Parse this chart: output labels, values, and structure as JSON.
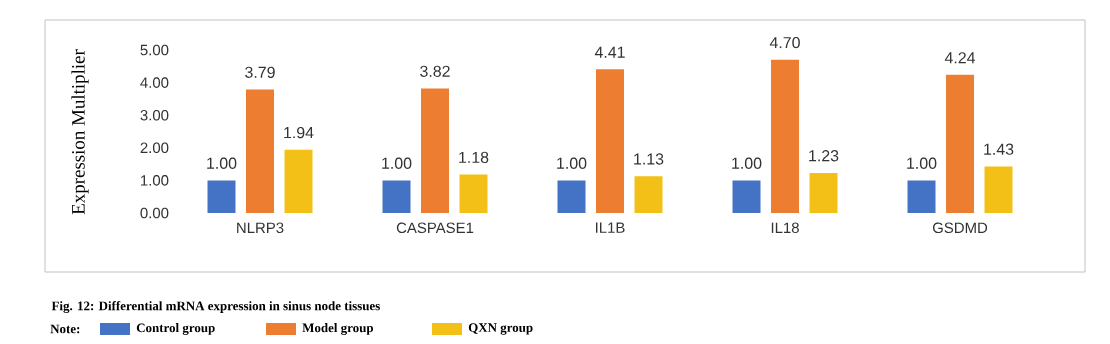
{
  "chart_data": {
    "type": "bar",
    "ylabel": "Expression Multiplier",
    "categories": [
      "NLRP3",
      "CASPASE1",
      "IL1B",
      "IL18",
      "GSDMD"
    ],
    "series": [
      {
        "name": "Control group",
        "color": "#4472c4",
        "values": [
          1.0,
          1.0,
          1.0,
          1.0,
          1.0
        ],
        "value_labels": [
          "1.00",
          "1.00",
          "1.00",
          "1.00",
          "1.00"
        ]
      },
      {
        "name": "Model group",
        "color": "#ed7d31",
        "values": [
          3.79,
          3.82,
          4.41,
          4.7,
          4.24
        ],
        "value_labels": [
          "3.79",
          "3.82",
          "4.41",
          "4.70",
          "4.24"
        ]
      },
      {
        "name": "QXN group",
        "color": "#f2c016",
        "values": [
          1.94,
          1.18,
          1.13,
          1.23,
          1.43
        ],
        "value_labels": [
          "1.94",
          "1.18",
          "1.13",
          "1.23",
          "1.43"
        ]
      }
    ],
    "ylim": [
      0,
      5
    ],
    "yticks": [
      {
        "value": 0,
        "label": "0.00"
      },
      {
        "value": 1,
        "label": "1.00"
      },
      {
        "value": 2,
        "label": "2.00"
      },
      {
        "value": 3,
        "label": "3.00"
      },
      {
        "value": 4,
        "label": "4.00"
      },
      {
        "value": 5,
        "label": "5.00"
      }
    ],
    "grid": false,
    "legend": "bottom",
    "annotations": [
      "Fig. 12: Differential mRNA expression in sinus node tissues",
      "Note:"
    ]
  }
}
